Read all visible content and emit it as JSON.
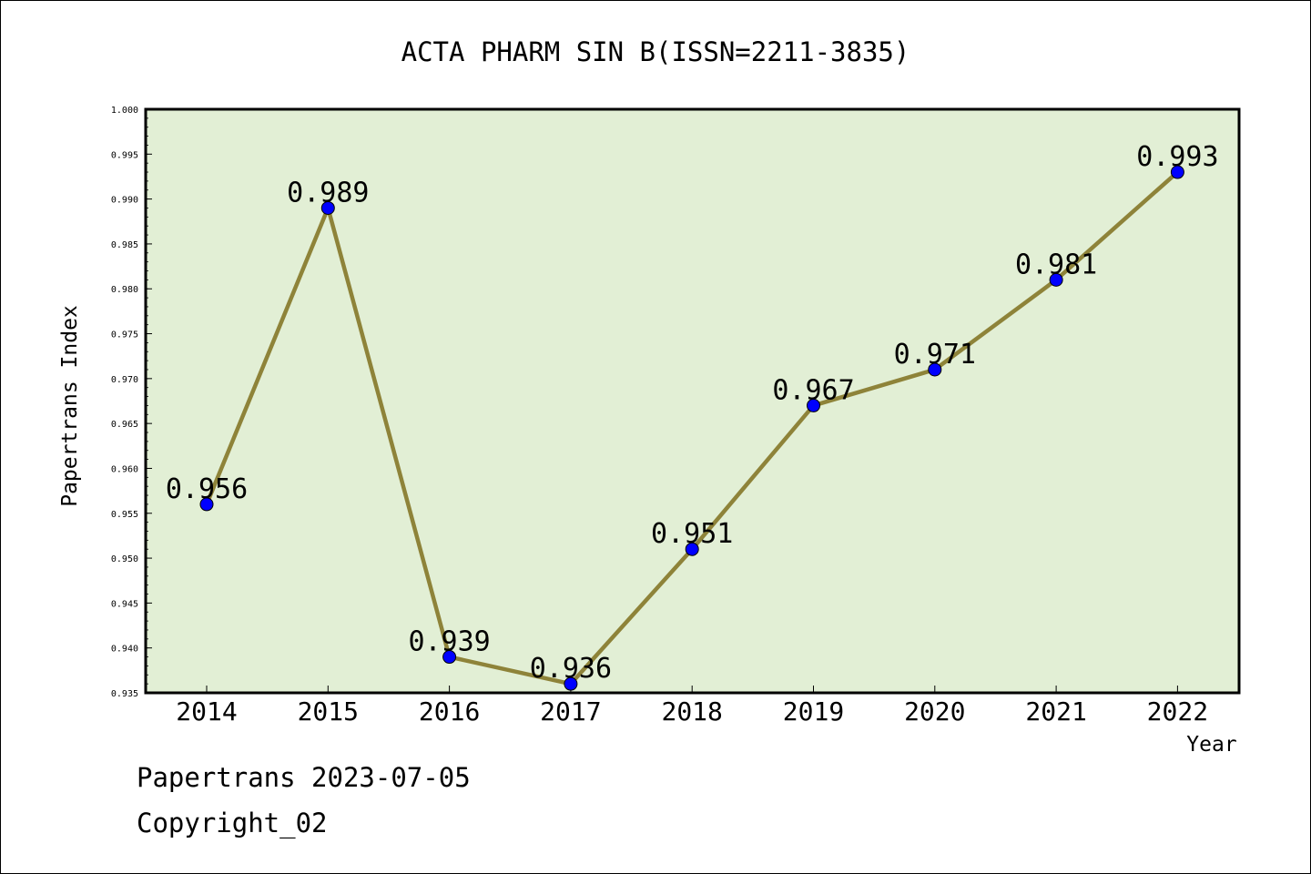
{
  "chart_data": {
    "type": "line",
    "title": "ACTA PHARM SIN B(ISSN=2211-3835)",
    "xlabel": "Year",
    "ylabel": "Papertrans Index",
    "categories": [
      "2014",
      "2015",
      "2016",
      "2017",
      "2018",
      "2019",
      "2020",
      "2021",
      "2022"
    ],
    "values": [
      0.956,
      0.989,
      0.939,
      0.936,
      0.951,
      0.967,
      0.971,
      0.981,
      0.993
    ],
    "data_labels": [
      "0.956",
      "0.989",
      "0.939",
      "0.936",
      "0.951",
      "0.967",
      "0.971",
      "0.981",
      "0.993"
    ],
    "ylim": [
      0.935,
      1.0
    ],
    "yticks": [
      "0.935",
      "0.940",
      "0.945",
      "0.950",
      "0.955",
      "0.960",
      "0.965",
      "0.970",
      "0.975",
      "0.980",
      "0.985",
      "0.990",
      "0.995",
      "1.000"
    ],
    "grid": false,
    "colors": {
      "plot_background": "#e2efd5",
      "line": "#8e8339",
      "marker": "#0000ff"
    }
  },
  "footer": {
    "date_line": "Papertrans 2023-07-05",
    "copyright": "Copyright_02"
  }
}
